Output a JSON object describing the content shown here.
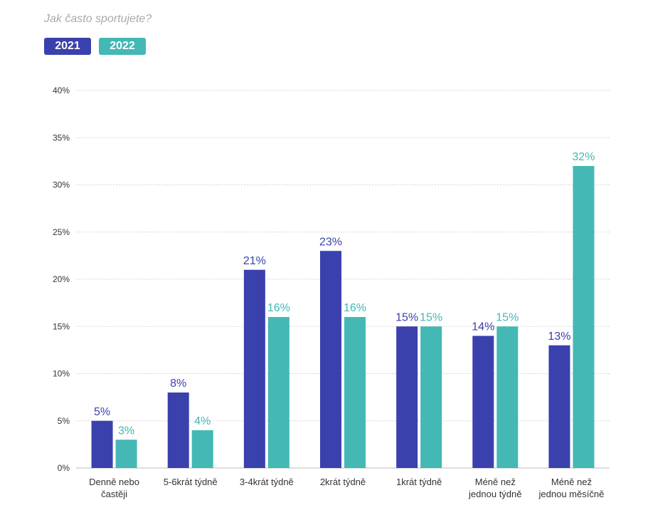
{
  "chart_data": {
    "type": "bar",
    "title": "Jak často sportujete?",
    "categories": [
      [
        "Denně nebo",
        "častěji"
      ],
      [
        "5-6krát týdně"
      ],
      [
        "3-4krát týdně"
      ],
      [
        "2krát týdně"
      ],
      [
        "1krát týdně"
      ],
      [
        "Méně než",
        "jednou týdně"
      ],
      [
        "Méně než",
        "jednou měsíčně"
      ]
    ],
    "series": [
      {
        "name": "2021",
        "color": "#3a41ad",
        "values": [
          5,
          8,
          21,
          23,
          15,
          14,
          13
        ]
      },
      {
        "name": "2022",
        "color": "#44b8b4",
        "values": [
          3,
          4,
          16,
          16,
          15,
          15,
          32
        ]
      }
    ],
    "ylim": [
      0,
      40
    ],
    "yticks": [
      0,
      5,
      10,
      15,
      20,
      25,
      30,
      35,
      40
    ],
    "value_suffix": "%",
    "grid": true,
    "legend_position": "top-left"
  }
}
